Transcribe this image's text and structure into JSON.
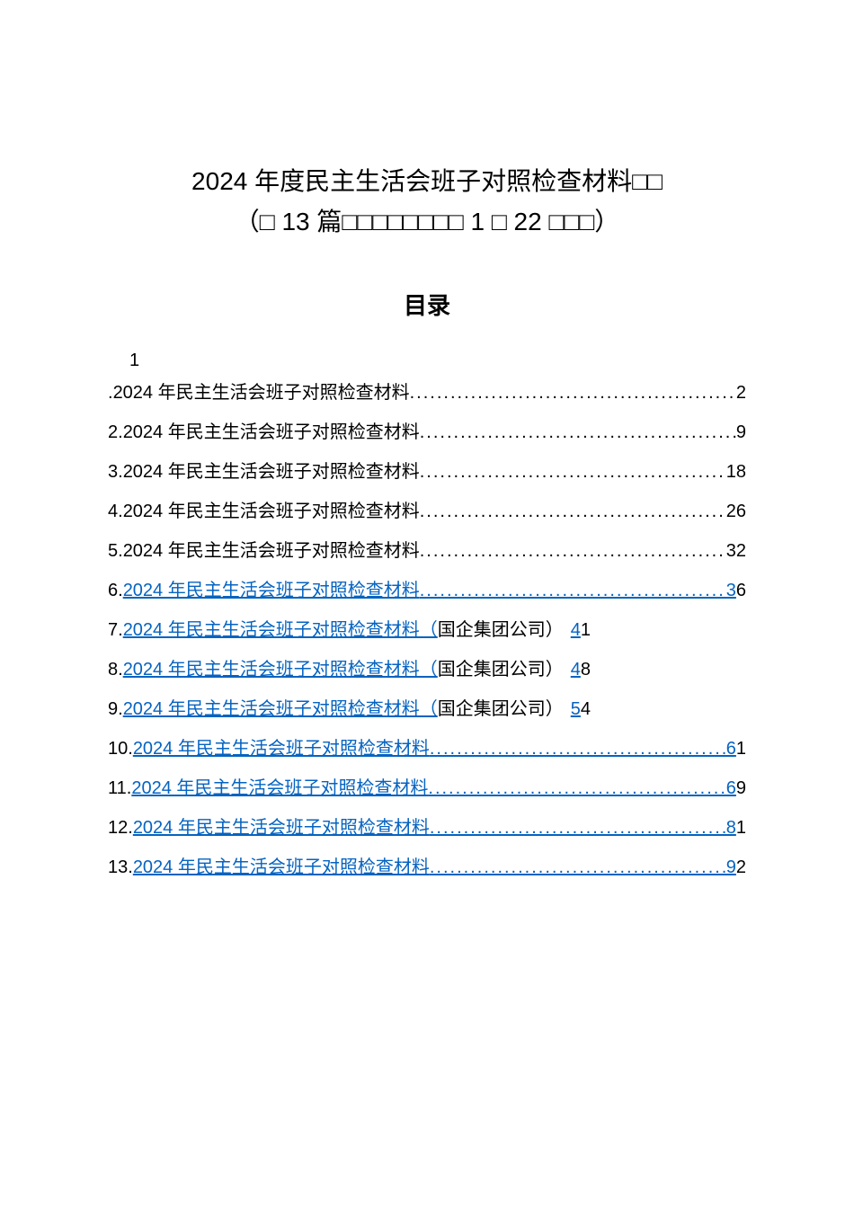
{
  "title": {
    "line1": "2024 年度民主生活会班子对照检查材料□□",
    "line2": "（□ 13 篇□□□□□□□□ 1 □ 22 □□□）"
  },
  "toc_heading": "目录",
  "first_number": "1",
  "entries": [
    {
      "prefix": ".",
      "text": "2024 年民主生活会班子对照检查材料",
      "suffix": "",
      "page": "2",
      "linked": false,
      "has_dots": true,
      "page_first_linked": false
    },
    {
      "prefix": "2.",
      "text": "2024 年民主生活会班子对照检查材料",
      "suffix": "",
      "page": "9",
      "linked": false,
      "has_dots": true,
      "page_first_linked": false
    },
    {
      "prefix": "3.",
      "text": "2024 年民主生活会班子对照检查材料",
      "suffix": "",
      "page": "18",
      "linked": false,
      "has_dots": true,
      "page_first_linked": false
    },
    {
      "prefix": "4.",
      "text": "2024 年民主生活会班子对照检查材料",
      "suffix": "",
      "page": "26",
      "linked": false,
      "has_dots": true,
      "page_first_linked": false
    },
    {
      "prefix": "5.",
      "text": "2024 年民主生活会班子对照检查材料",
      "suffix": "",
      "page": "32",
      "linked": false,
      "has_dots": true,
      "page_first_linked": false
    },
    {
      "prefix": "6.",
      "text": "2024 年民主生活会班子对照检查材料",
      "suffix": "",
      "page": "36",
      "linked": true,
      "has_dots": true,
      "page_first_linked": true
    },
    {
      "prefix": "7.",
      "text": "2024 年民主生活会班子对照检查材料（",
      "suffix": "国企集团公司）",
      "page": "41",
      "linked": true,
      "has_dots": false,
      "page_first_linked": true
    },
    {
      "prefix": "8.",
      "text": "2024 年民主生活会班子对照检查材料（",
      "suffix": "国企集团公司）",
      "page": "48",
      "linked": true,
      "has_dots": false,
      "page_first_linked": true
    },
    {
      "prefix": "9.",
      "text": "2024 年民主生活会班子对照检查材料（",
      "suffix": "国企集团公司）",
      "page": "54",
      "linked": true,
      "has_dots": false,
      "page_first_linked": true
    },
    {
      "prefix": "10.",
      "text": "2024 年民主生活会班子对照检查材料",
      "suffix": "",
      "page": "61",
      "linked": true,
      "has_dots": true,
      "page_first_linked": true
    },
    {
      "prefix": "11.",
      "text": "2024 年民主生活会班子对照检查材料",
      "suffix": "",
      "page": "69",
      "linked": true,
      "has_dots": true,
      "page_first_linked": true
    },
    {
      "prefix": "12.",
      "text": "2024 年民主生活会班子对照检查材料",
      "suffix": "",
      "page": "81",
      "linked": true,
      "has_dots": true,
      "page_first_linked": true
    },
    {
      "prefix": "13.",
      "text": "2024 年民主生活会班子对照检查材料",
      "suffix": "",
      "page": "92",
      "linked": true,
      "has_dots": true,
      "page_first_linked": true
    }
  ],
  "colors": {
    "background": "#ffffff",
    "text": "#000000",
    "link": "#0563c1"
  }
}
